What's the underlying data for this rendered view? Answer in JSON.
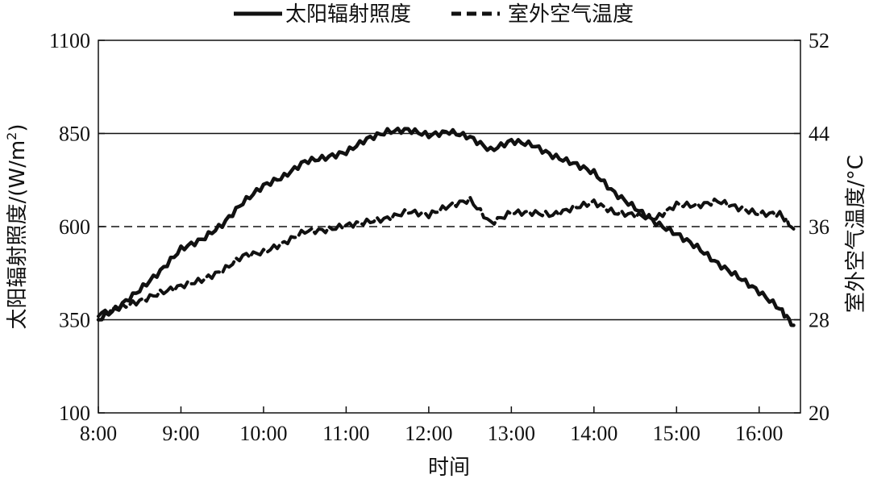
{
  "chart_data": {
    "type": "line",
    "xlabel": "时间",
    "ylabel_left": "太阳辐射照度/(W/m²)",
    "ylabel_left_base": "太阳辐射照度/(W/m",
    "ylabel_left_sup": "2",
    "ylabel_left_close": ")",
    "ylabel_right": "室外空气温度/°C",
    "x_ticks": [
      "8:00",
      "9:00",
      "10:00",
      "11:00",
      "12:00",
      "13:00",
      "14:00",
      "15:00",
      "16:00"
    ],
    "x_range_hours": [
      8,
      16.5
    ],
    "y_left_ticks": [
      "100",
      "350",
      "600",
      "850",
      "1100"
    ],
    "y_left_range": [
      100,
      1100
    ],
    "y_right_ticks": [
      "20",
      "28",
      "36",
      "44",
      "52"
    ],
    "y_right_range": [
      20,
      52
    ],
    "gridlines_left": [
      350,
      850
    ],
    "dashed_reference_left": 600,
    "legend_position": "top-center",
    "series": [
      {
        "name": "太阳辐射照度",
        "axis": "left",
        "style": "solid",
        "x": [
          "8:00",
          "8:15",
          "8:30",
          "8:45",
          "9:00",
          "9:15",
          "9:30",
          "9:45",
          "10:00",
          "10:15",
          "10:30",
          "10:45",
          "11:00",
          "11:15",
          "11:30",
          "11:45",
          "12:00",
          "12:15",
          "12:30",
          "12:45",
          "13:00",
          "13:15",
          "13:30",
          "13:45",
          "14:00",
          "14:15",
          "14:30",
          "14:45",
          "15:00",
          "15:15",
          "15:30",
          "15:45",
          "16:00",
          "16:15",
          "16:25"
        ],
        "values": [
          350,
          385,
          430,
          480,
          540,
          565,
          605,
          665,
          710,
          735,
          775,
          785,
          800,
          835,
          855,
          860,
          845,
          855,
          840,
          805,
          830,
          820,
          790,
          770,
          745,
          690,
          650,
          610,
          580,
          545,
          500,
          465,
          425,
          380,
          335
        ]
      },
      {
        "name": "室外空气温度",
        "axis": "right",
        "style": "dashed",
        "x": [
          "8:00",
          "8:15",
          "8:30",
          "8:45",
          "9:00",
          "9:15",
          "9:30",
          "9:45",
          "10:00",
          "10:15",
          "10:30",
          "10:45",
          "11:00",
          "11:15",
          "11:30",
          "11:45",
          "12:00",
          "12:15",
          "12:30",
          "12:45",
          "13:00",
          "13:15",
          "13:30",
          "13:45",
          "14:00",
          "14:15",
          "14:30",
          "14:45",
          "15:00",
          "15:15",
          "15:30",
          "15:45",
          "16:00",
          "16:15",
          "16:25"
        ],
        "values": [
          28.5,
          29.0,
          29.6,
          30.3,
          30.9,
          31.4,
          32.2,
          33.5,
          33.8,
          34.6,
          35.6,
          35.7,
          36.1,
          36.4,
          36.7,
          37.3,
          37.0,
          37.8,
          38.3,
          36.3,
          37.2,
          37.2,
          37.0,
          37.6,
          38.1,
          37.2,
          37.0,
          36.7,
          37.9,
          37.8,
          38.2,
          37.6,
          37.1,
          37.1,
          35.8
        ]
      }
    ]
  }
}
